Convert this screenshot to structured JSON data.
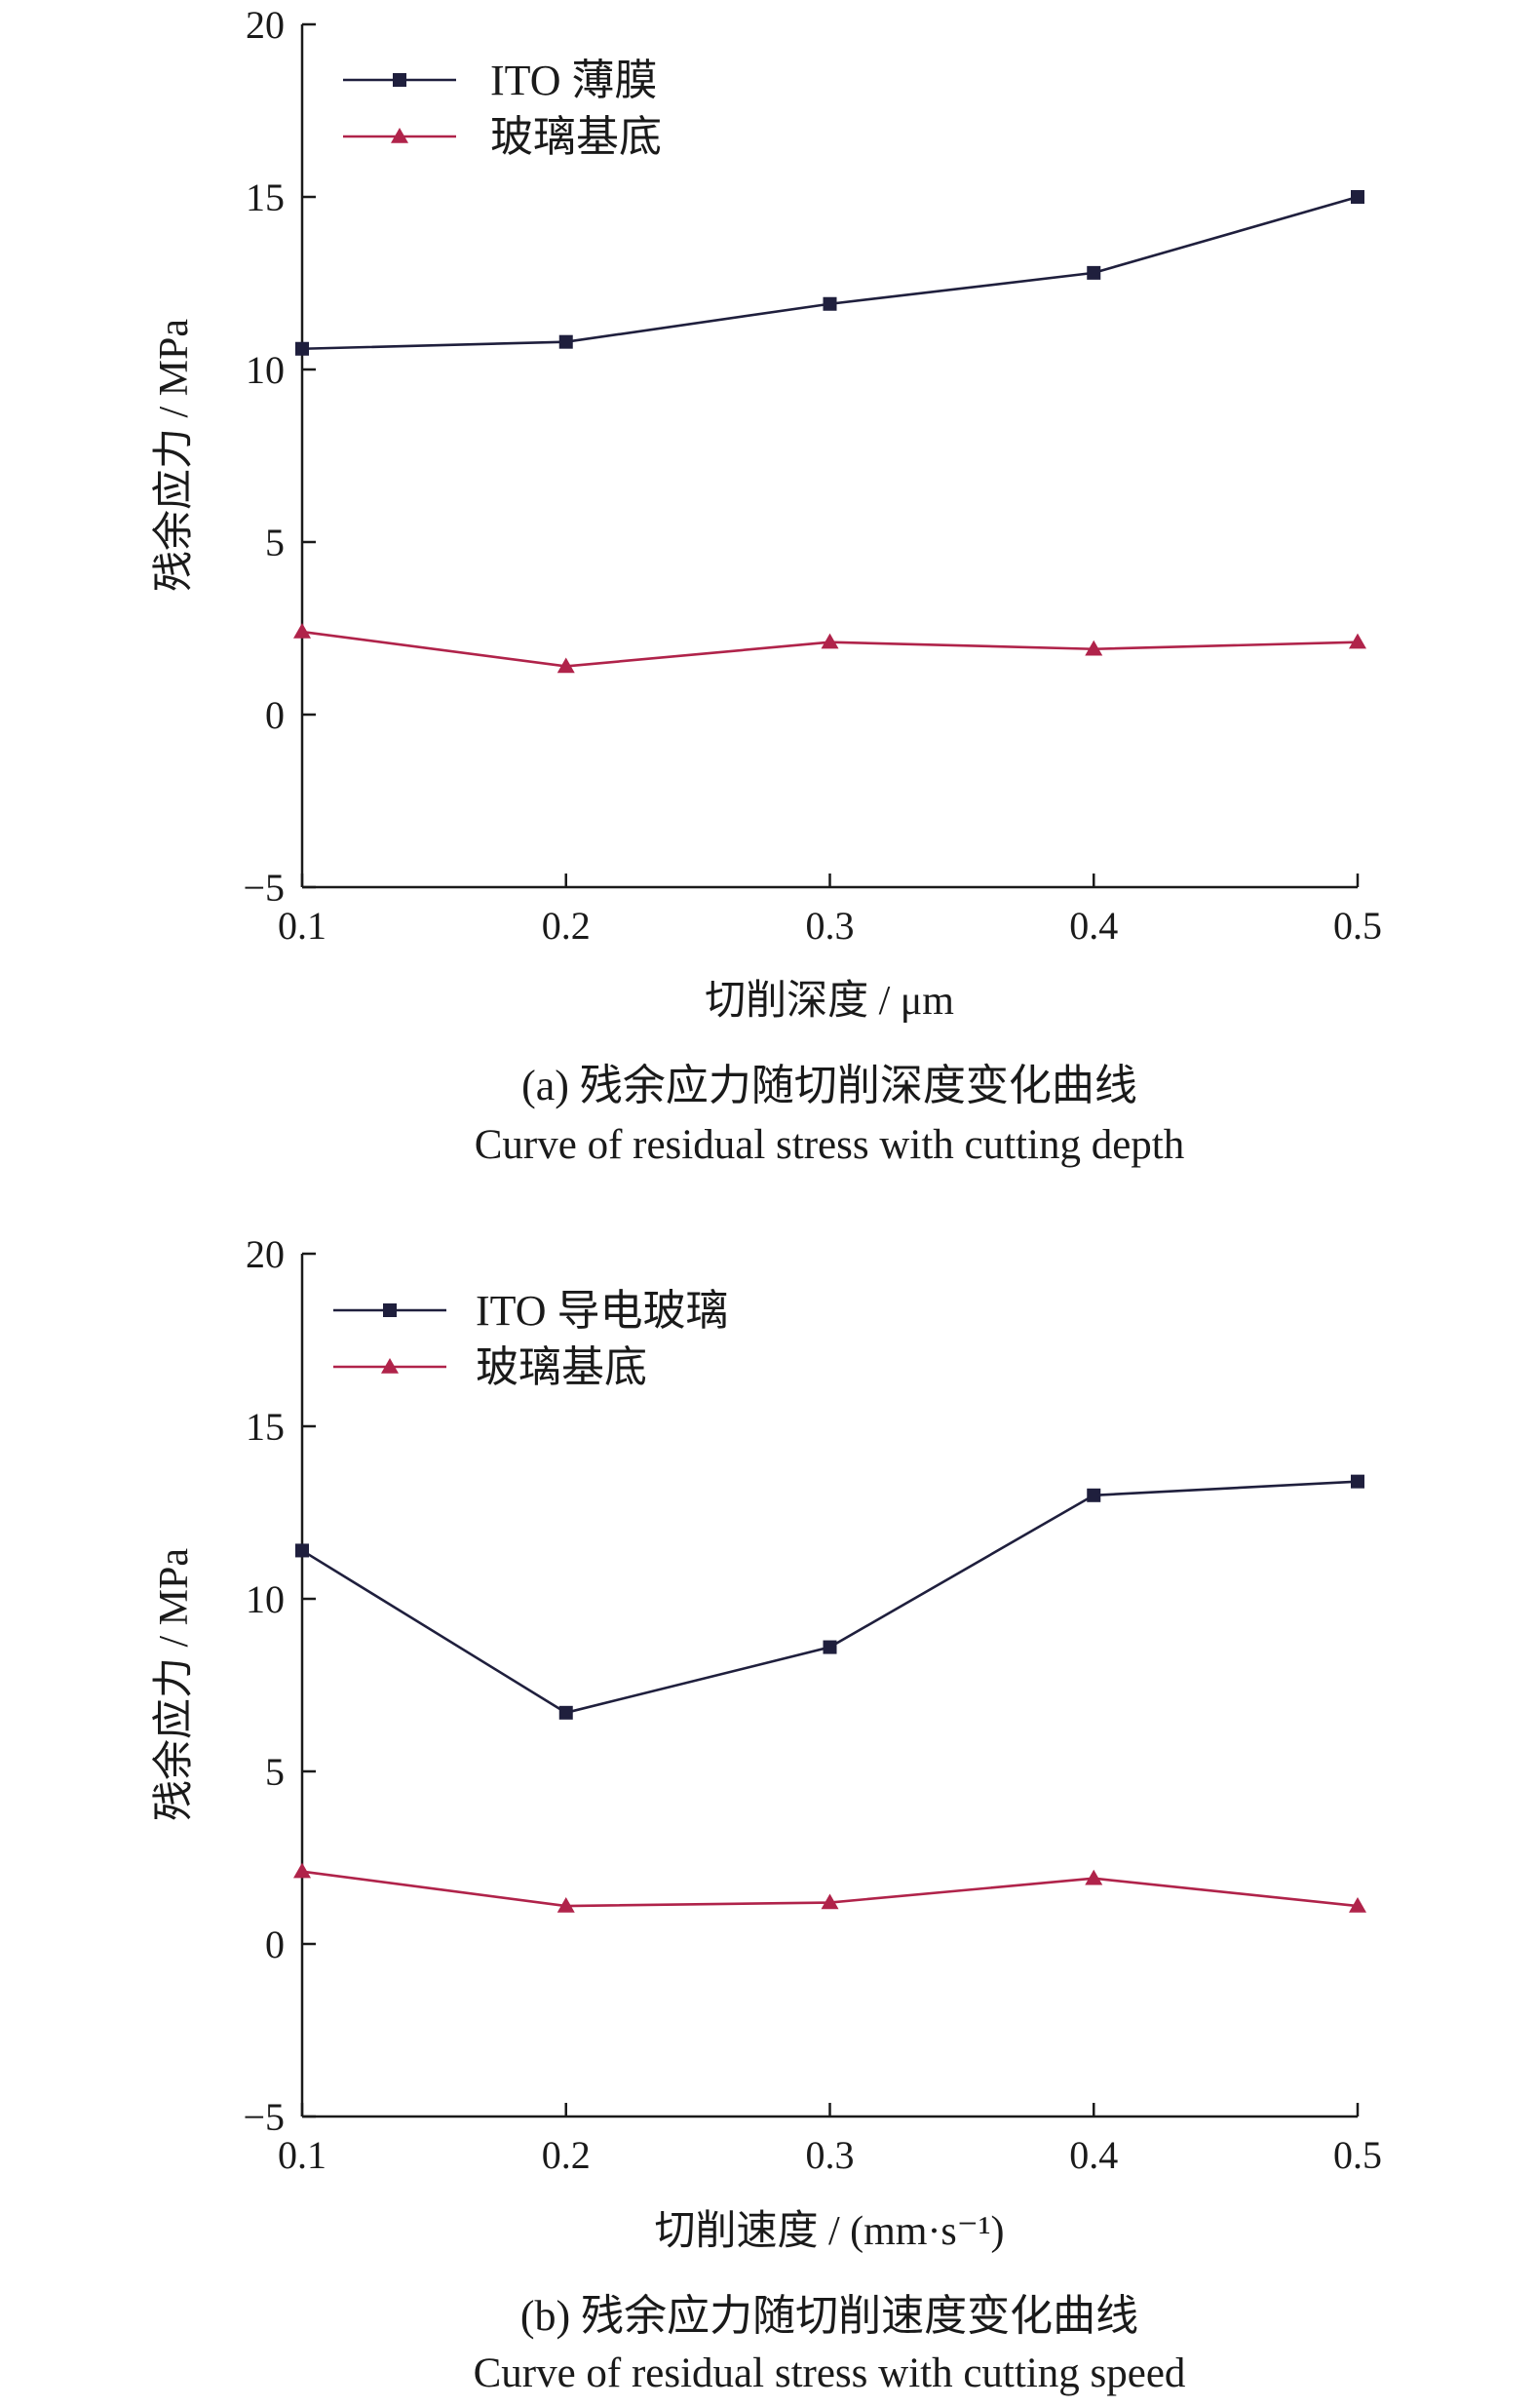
{
  "chart_data": [
    {
      "type": "line",
      "xlabel": "切削深度 / μm",
      "ylabel": "残余应力 / MPa",
      "x": [
        0.1,
        0.2,
        0.3,
        0.4,
        0.5
      ],
      "x_ticks": [
        "0.1",
        "0.2",
        "0.3",
        "0.4",
        "0.5"
      ],
      "y_ticks": [
        "−5",
        "0",
        "5",
        "10",
        "15",
        "20"
      ],
      "ylim": [
        -5,
        20
      ],
      "xlim": [
        0.1,
        0.5
      ],
      "legend_position": "top-left",
      "grid": false,
      "series": [
        {
          "name": "ITO 薄膜",
          "marker": "square",
          "color": "#1f1f3d",
          "values": [
            10.6,
            10.8,
            11.9,
            12.8,
            15.0
          ]
        },
        {
          "name": "玻璃基底",
          "marker": "triangle",
          "color": "#b0234a",
          "values": [
            2.4,
            1.4,
            2.1,
            1.9,
            2.1
          ]
        }
      ],
      "caption_cn": "(a) 残余应力随切削深度变化曲线",
      "caption_en": "Curve of residual stress with cutting depth"
    },
    {
      "type": "line",
      "xlabel": "切削速度 / (mm·s⁻¹)",
      "ylabel": "残余应力 / MPa",
      "x": [
        0.1,
        0.2,
        0.3,
        0.4,
        0.5
      ],
      "x_ticks": [
        "0.1",
        "0.2",
        "0.3",
        "0.4",
        "0.5"
      ],
      "y_ticks": [
        "−5",
        "0",
        "5",
        "10",
        "15",
        "20"
      ],
      "ylim": [
        -5,
        20
      ],
      "xlim": [
        0.1,
        0.5
      ],
      "legend_position": "top-left",
      "grid": false,
      "series": [
        {
          "name": "ITO 导电玻璃",
          "marker": "square",
          "color": "#1f1f3d",
          "values": [
            11.4,
            6.7,
            8.6,
            13.0,
            13.4
          ]
        },
        {
          "name": "玻璃基底",
          "marker": "triangle",
          "color": "#b0234a",
          "values": [
            2.1,
            1.1,
            1.2,
            1.9,
            1.1
          ]
        }
      ],
      "caption_cn": "(b) 残余应力随切削速度变化曲线",
      "caption_en": "Curve of residual stress with cutting speed"
    }
  ]
}
